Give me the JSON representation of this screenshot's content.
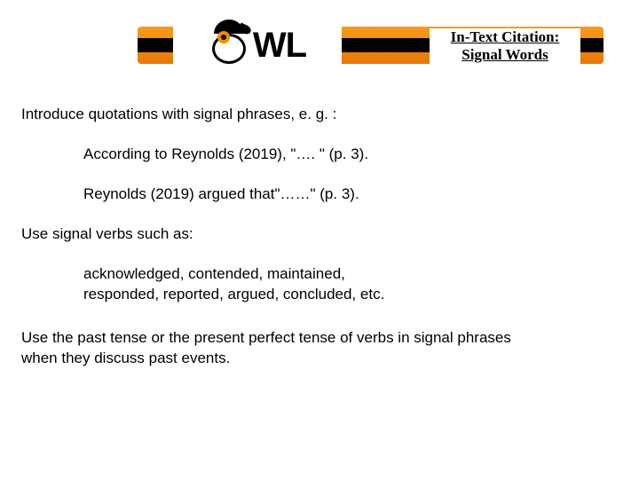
{
  "header": {
    "logo_text": "WL",
    "title_line1": "In-Text Citation:",
    "title_line2": "Signal Words",
    "orange_gradient_top": "#f79b1a",
    "orange_gradient_mid": "#f28a0c",
    "orange_gradient_bottom": "#e57708",
    "accent_color": "#f28a0c"
  },
  "body": {
    "intro": "Introduce quotations with signal phrases, e. g. :",
    "example1": "According to Reynolds (2019), \"…. \" (p. 3).",
    "example2": "Reynolds (2019) argued that\"……\" (p. 3).",
    "verbs_intro": "Use signal verbs such as:",
    "verbs_line1": "acknowledged, contended, maintained,",
    "verbs_line2": "responded, reported, argued, concluded, etc.",
    "tense_line1": "Use the past tense or the present perfect tense of verbs in signal phrases",
    "tense_line2": "when they discuss past events.",
    "font_size": 17,
    "text_color": "#000000",
    "background_color": "#ffffff"
  }
}
